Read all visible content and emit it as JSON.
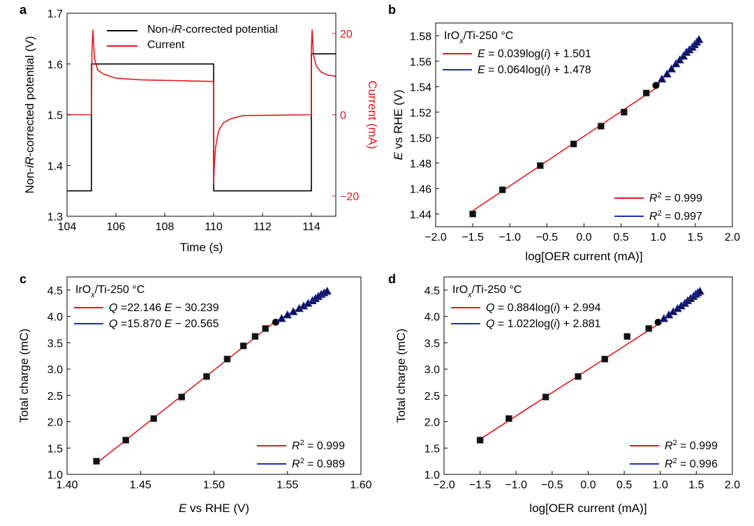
{
  "chart_data": [
    {
      "panel": "a",
      "type": "line",
      "title": "",
      "xlabel": "Time (s)",
      "ylabel": "Non-iR-corrected potential (V)",
      "y2label": "Current (mA)",
      "xlim": [
        104,
        115
      ],
      "ylim": [
        1.3,
        1.7
      ],
      "y2lim": [
        -25,
        25
      ],
      "xticks": [
        "104",
        "106",
        "108",
        "110",
        "112",
        "114"
      ],
      "yticks": [
        "1.3",
        "1.4",
        "1.5",
        "1.6",
        "1.7"
      ],
      "y2ticks": [
        "20",
        "0",
        "−20"
      ],
      "legend": [
        "Non-iR-corrected potential",
        "Current"
      ],
      "colors": {
        "potential": "#000000",
        "current": "#e8141c"
      },
      "series": [
        {
          "name": "Non-iR-corrected potential",
          "axis": "left",
          "x": [
            104,
            105,
            105,
            110,
            110,
            114,
            114,
            115
          ],
          "y": [
            1.35,
            1.35,
            1.6,
            1.6,
            1.35,
            1.35,
            1.62,
            1.62
          ]
        },
        {
          "name": "Current",
          "axis": "right",
          "x": [
            104,
            105,
            105.02,
            105.06,
            105.12,
            105.25,
            105.5,
            106,
            107,
            110,
            110,
            110.03,
            110.08,
            110.2,
            110.4,
            110.7,
            111.2,
            114,
            114,
            114.03,
            114.08,
            114.2,
            114.4,
            114.7,
            115
          ],
          "y": [
            0,
            0,
            16,
            21,
            14,
            11,
            10,
            9,
            8.6,
            8.2,
            -17,
            -12,
            -8,
            -4,
            -2,
            -1,
            -0.2,
            0,
            16,
            21,
            15,
            12,
            10.5,
            9.7,
            9.5
          ]
        }
      ]
    },
    {
      "panel": "b",
      "type": "scatter",
      "annotation": "IrOx/Ti-250 °C",
      "xlabel": "log[OER current (mA)]",
      "ylabel": "E vs RHE (V)",
      "xlim": [
        -2.0,
        2.0
      ],
      "ylim": [
        1.43,
        1.59
      ],
      "xticks": [
        "−2.0",
        "−1.5",
        "−1.0",
        "−0.5",
        "0.0",
        "0.5",
        "1.0",
        "1.5",
        "2.0"
      ],
      "yticks": [
        "1.44",
        "1.46",
        "1.48",
        "1.50",
        "1.52",
        "1.54",
        "1.56",
        "1.58"
      ],
      "fits": [
        {
          "label": "E = 0.039log(i) + 1.501",
          "r2": "R2 = 0.999",
          "slope": 0.039,
          "intercept": 1.501,
          "x_range": [
            -1.52,
            0.97
          ],
          "color": "#e8141c"
        },
        {
          "label": "E = 0.064log(i) + 1.478",
          "r2": "R2 = 0.997",
          "slope": 0.064,
          "intercept": 1.478,
          "x_range": [
            0.97,
            1.57
          ],
          "color": "#1f2cc4"
        }
      ],
      "squares": {
        "x": [
          -1.5,
          -1.1,
          -0.59,
          -0.14,
          0.23,
          0.54,
          0.84
        ],
        "y": [
          1.44,
          1.459,
          1.478,
          1.495,
          1.509,
          1.52,
          1.535
        ]
      },
      "circle": {
        "x": [
          0.97
        ],
        "y": [
          1.541
        ]
      },
      "triangles": {
        "x": [
          1.05,
          1.12,
          1.18,
          1.24,
          1.29,
          1.34,
          1.38,
          1.42,
          1.46,
          1.49,
          1.52,
          1.55
        ],
        "y": [
          1.546,
          1.55,
          1.554,
          1.558,
          1.561,
          1.564,
          1.567,
          1.569,
          1.571,
          1.573,
          1.575,
          1.577
        ]
      }
    },
    {
      "panel": "c",
      "type": "scatter",
      "annotation": "IrOx/Ti-250 °C",
      "xlabel": "E vs RHE (V)",
      "ylabel": "Total charge (mC)",
      "xlim": [
        1.4,
        1.6
      ],
      "ylim": [
        1.0,
        4.75
      ],
      "xticks": [
        "1.40",
        "1.45",
        "1.50",
        "1.55",
        "1.60"
      ],
      "yticks": [
        "1.0",
        "1.5",
        "2.0",
        "2.5",
        "3.0",
        "3.5",
        "4.0",
        "4.5"
      ],
      "fits": [
        {
          "label": "Q =22.146 E − 30.239",
          "r2": "R2 = 0.999",
          "slope": 22.146,
          "intercept": -30.239,
          "x_range": [
            1.42,
            1.542
          ],
          "color": "#e8141c"
        },
        {
          "label": "Q =15.870 E − 20.565",
          "r2": "R2 = 0.989",
          "slope": 15.87,
          "intercept": -20.565,
          "x_range": [
            1.542,
            1.578
          ],
          "color": "#1f2cc4"
        }
      ],
      "squares": {
        "x": [
          1.42,
          1.44,
          1.459,
          1.478,
          1.495,
          1.509,
          1.52,
          1.528,
          1.535
        ],
        "y": [
          1.25,
          1.65,
          2.06,
          2.47,
          2.86,
          3.19,
          3.44,
          3.62,
          3.77
        ]
      },
      "circle": {
        "x": [
          1.542
        ],
        "y": [
          3.89
        ]
      },
      "triangles": {
        "x": [
          1.546,
          1.55,
          1.554,
          1.558,
          1.561,
          1.564,
          1.567,
          1.569,
          1.571,
          1.573,
          1.575,
          1.577
        ],
        "y": [
          3.96,
          4.03,
          4.09,
          4.15,
          4.2,
          4.25,
          4.3,
          4.34,
          4.38,
          4.42,
          4.45,
          4.48
        ]
      }
    },
    {
      "panel": "d",
      "type": "scatter",
      "annotation": "IrOx/Ti-250 °C",
      "xlabel": "log[OER current (mA)]",
      "ylabel": "Total charge (mC)",
      "xlim": [
        -2.0,
        2.0
      ],
      "ylim": [
        1.0,
        4.75
      ],
      "xticks": [
        "−2.0",
        "−1.5",
        "−1.0",
        "−0.5",
        "0.0",
        "0.5",
        "1.0",
        "1.5",
        "2.0"
      ],
      "yticks": [
        "1.0",
        "1.5",
        "2.0",
        "2.5",
        "3.0",
        "3.5",
        "4.0",
        "4.5"
      ],
      "fits": [
        {
          "label": "Q = 0.884log(i) + 2.994",
          "r2": "R2 = 0.999",
          "slope": 0.884,
          "intercept": 2.994,
          "x_range": [
            -1.52,
            0.97
          ],
          "color": "#e8141c"
        },
        {
          "label": "Q = 1.022log(i) + 2.881",
          "r2": "R2 = 0.996",
          "slope": 1.022,
          "intercept": 2.881,
          "x_range": [
            0.97,
            1.57
          ],
          "color": "#1f2cc4"
        }
      ],
      "squares": {
        "x": [
          -1.5,
          -1.1,
          -0.59,
          -0.14,
          0.23,
          0.54,
          0.84
        ],
        "y": [
          1.65,
          2.06,
          2.47,
          2.86,
          3.19,
          3.62,
          3.77
        ]
      },
      "circle": {
        "x": [
          0.97
        ],
        "y": [
          3.89
        ]
      },
      "triangles": {
        "x": [
          1.05,
          1.12,
          1.18,
          1.24,
          1.29,
          1.34,
          1.38,
          1.42,
          1.46,
          1.49,
          1.52,
          1.55
        ],
        "y": [
          3.96,
          4.03,
          4.09,
          4.15,
          4.2,
          4.25,
          4.3,
          4.34,
          4.38,
          4.42,
          4.45,
          4.48
        ]
      }
    }
  ]
}
